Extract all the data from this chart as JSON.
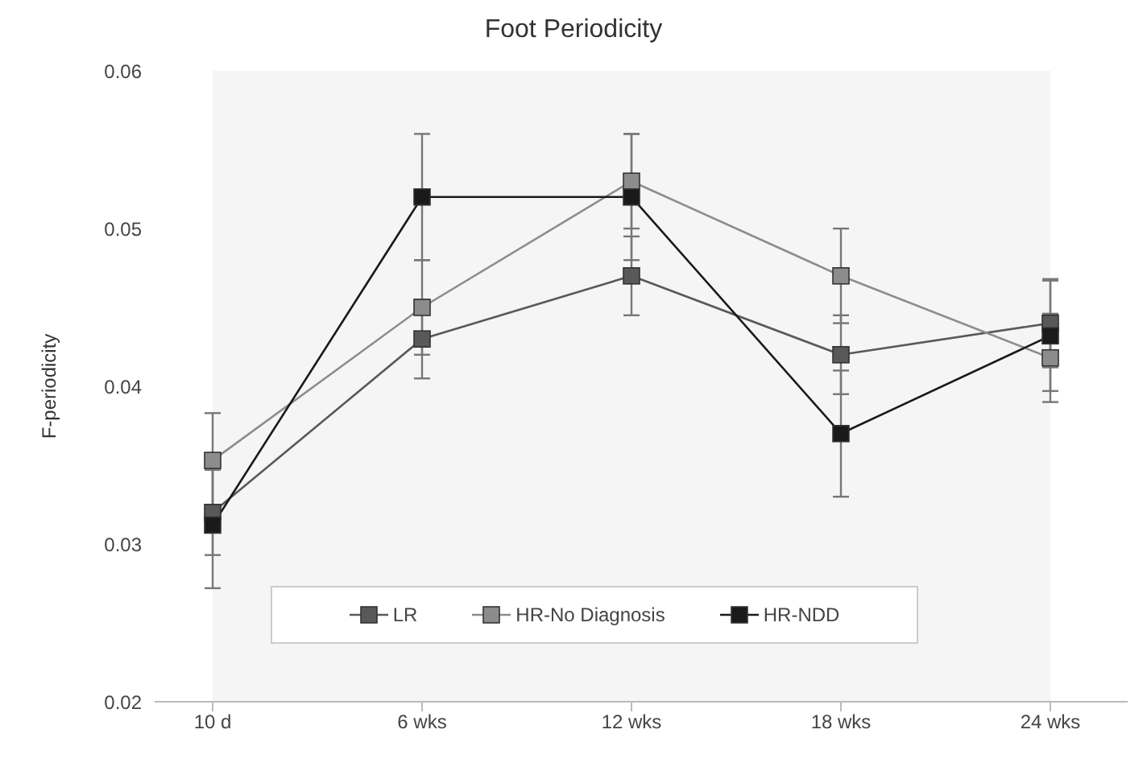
{
  "chart_data": {
    "type": "line",
    "title": "Foot Periodicity",
    "ylabel": "F-periodicity",
    "categories": [
      "10 d",
      "6 wks",
      "12 wks",
      "18 wks",
      "24 wks"
    ],
    "series": [
      {
        "name": "LR",
        "color": "#595959",
        "values": [
          0.032,
          0.043,
          0.047,
          0.042,
          0.044
        ],
        "errors": [
          0.0027,
          0.0025,
          0.0025,
          0.0025,
          0.0028
        ]
      },
      {
        "name": "HR-No Diagnosis",
        "color": "#8c8c8c",
        "values": [
          0.0353,
          0.045,
          0.053,
          0.047,
          0.0418
        ],
        "errors": [
          0.003,
          0.003,
          0.003,
          0.003,
          0.0028
        ]
      },
      {
        "name": "HR-NDD",
        "color": "#1a1a1a",
        "values": [
          0.0312,
          0.052,
          0.052,
          0.037,
          0.0432
        ],
        "errors": [
          0.004,
          0.004,
          0.004,
          0.004,
          0.0035
        ]
      }
    ],
    "ylim": [
      0.02,
      0.06
    ],
    "yticks": [
      0.02,
      0.03,
      0.04,
      0.05,
      0.06
    ],
    "grid": false,
    "legend": "bottom",
    "marker": "square",
    "line_style": "solid"
  }
}
